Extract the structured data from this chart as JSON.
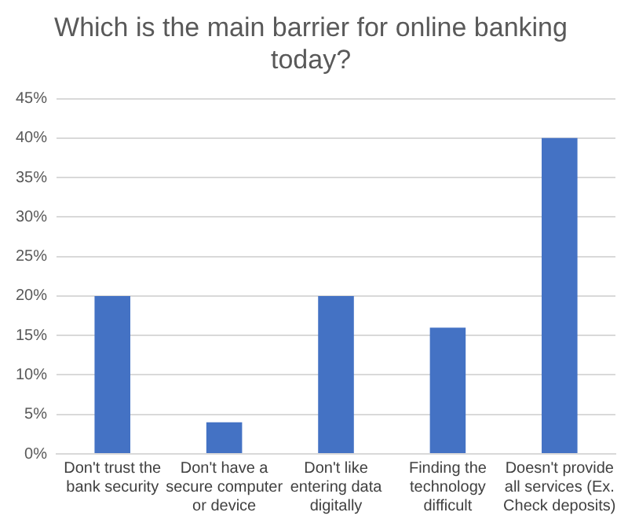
{
  "chart_data": {
    "type": "bar",
    "title": "Which is the main barrier for online banking today?",
    "categories": [
      "Don't trust the bank security",
      "Don't have a secure computer or device",
      "Don't like entering data digitally",
      "Finding the technology difficult",
      "Doesn't provide all services (Ex. Check deposits)"
    ],
    "values": [
      20,
      4,
      20,
      16,
      40
    ],
    "color": "#4472c4",
    "ylim": [
      0,
      45
    ],
    "yticks": [
      {
        "value": 0,
        "label": "0%"
      },
      {
        "value": 5,
        "label": "5%"
      },
      {
        "value": 10,
        "label": "10%"
      },
      {
        "value": 15,
        "label": "15%"
      },
      {
        "value": 20,
        "label": "20%"
      },
      {
        "value": 25,
        "label": "25%"
      },
      {
        "value": 30,
        "label": "30%"
      },
      {
        "value": 35,
        "label": "35%"
      },
      {
        "value": 40,
        "label": "40%"
      },
      {
        "value": 45,
        "label": "45%"
      }
    ],
    "grid": "y"
  }
}
